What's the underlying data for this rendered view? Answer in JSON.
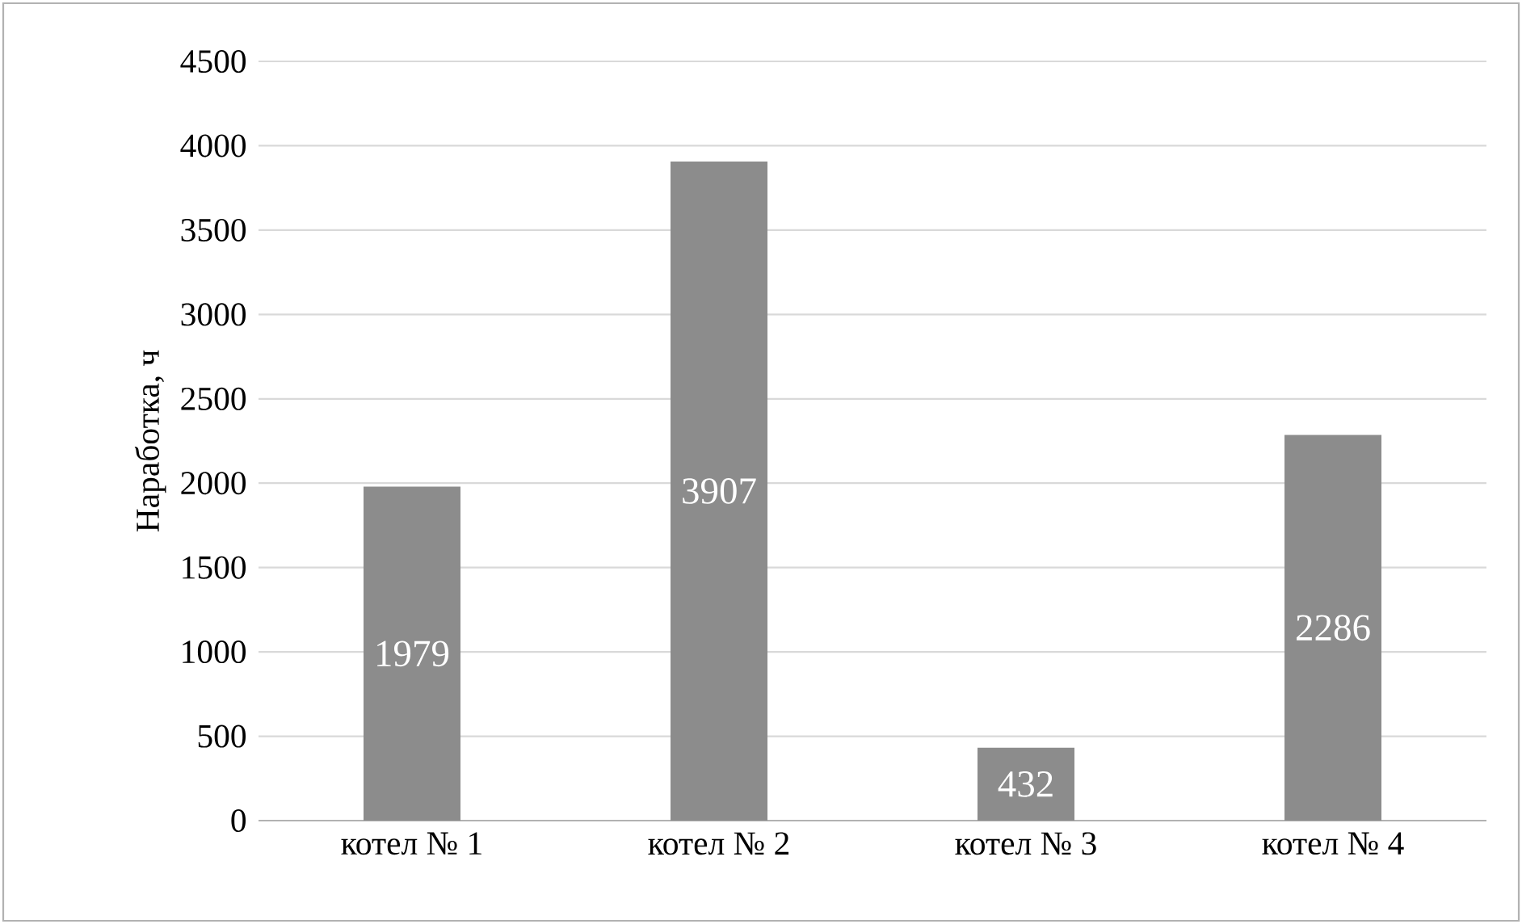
{
  "chart_data": {
    "type": "bar",
    "ylabel": "Наработка, ч",
    "categories": [
      "котел № 1",
      "котел № 2",
      "котел № 3",
      "котел № 4"
    ],
    "values": [
      1979,
      3907,
      432,
      2286
    ],
    "color": "#8c8c8c",
    "ylim": [
      0,
      4500
    ],
    "yticks": [
      0,
      500,
      1000,
      1500,
      2000,
      2500,
      3000,
      3500,
      4000,
      4500
    ],
    "grid": "y",
    "data_labels": true
  }
}
